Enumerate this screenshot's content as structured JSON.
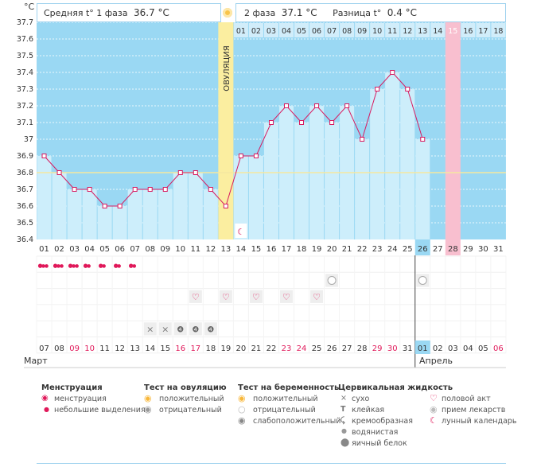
{
  "header": {
    "unit": "°C",
    "phase1_label": "Средняя t° 1 фаза",
    "phase1_value": "36.7 °C",
    "phase2_label": "2 фаза",
    "phase2_value": "37.1 °C",
    "diff_label": "Разница t°",
    "diff_value": "0.4 °C"
  },
  "ovulation_label": "ОВУЛЯЦИЯ",
  "months": {
    "first": "Март",
    "second": "Апрель"
  },
  "chart_data": {
    "type": "line",
    "ylim": [
      36.4,
      37.7
    ],
    "y_ticks": [
      "36.4",
      "36.5",
      "36.6",
      "36.7",
      "36.8",
      "36.9",
      "37",
      "37.1",
      "37.2",
      "37.3",
      "37.4",
      "37.5",
      "37.6",
      "37.7"
    ],
    "coverline": 36.8,
    "cycle_days": [
      "01",
      "02",
      "03",
      "04",
      "05",
      "06",
      "07",
      "08",
      "09",
      "10",
      "11",
      "12",
      "13",
      "14",
      "15",
      "16",
      "17",
      "18",
      "19",
      "20",
      "21",
      "22",
      "23",
      "24",
      "25",
      "26",
      "27",
      "28",
      "29",
      "30",
      "31"
    ],
    "days_after_ovulation": [
      "01",
      "02",
      "03",
      "04",
      "05",
      "06",
      "07",
      "08",
      "09",
      "10",
      "11",
      "12",
      "13",
      "14",
      "15",
      "16",
      "17",
      "18"
    ],
    "dates": [
      "07",
      "08",
      "09",
      "10",
      "11",
      "12",
      "13",
      "14",
      "15",
      "16",
      "17",
      "18",
      "19",
      "20",
      "21",
      "22",
      "23",
      "24",
      "25",
      "26",
      "27",
      "28",
      "29",
      "30",
      "31",
      "01",
      "02",
      "03",
      "04",
      "05",
      "06"
    ],
    "date_colors": [
      "n",
      "n",
      "r",
      "r",
      "n",
      "n",
      "n",
      "n",
      "n",
      "r",
      "r",
      "n",
      "n",
      "n",
      "n",
      "n",
      "r",
      "r",
      "n",
      "n",
      "n",
      "n",
      "r",
      "r",
      "n",
      "n",
      "n",
      "n",
      "n",
      "n",
      "r"
    ],
    "temperatures": [
      36.9,
      36.8,
      36.7,
      36.7,
      36.6,
      36.6,
      36.7,
      36.7,
      36.7,
      36.8,
      36.8,
      36.7,
      36.6,
      36.9,
      36.9,
      37.1,
      37.2,
      37.1,
      37.2,
      37.1,
      37.2,
      37.0,
      37.3,
      37.4,
      37.3,
      37.0
    ],
    "ovulation_day": 13,
    "current_day": 26,
    "expected_period_day": 28,
    "moon_day": 14,
    "menstruation": [
      3,
      3,
      3,
      2,
      2,
      2,
      2
    ],
    "pregnancy_test_negative_days": [
      20,
      26
    ],
    "intercourse_days": [
      11,
      13,
      15,
      17,
      19
    ],
    "cervical_fluid": {
      "dry": [
        8,
        9
      ],
      "creamy": [
        10,
        11,
        12
      ]
    }
  },
  "legend": {
    "groups": [
      {
        "title": "Менструация",
        "items": [
          {
            "icon": "drops-icon",
            "label": "менструация"
          },
          {
            "icon": "drop-icon",
            "label": "небольшие выделения"
          }
        ]
      },
      {
        "title": "Тест на овуляцию",
        "items": [
          {
            "icon": "positive-test-icon",
            "label": "положительный"
          },
          {
            "icon": "negative-test-icon",
            "label": "отрицательный"
          }
        ]
      },
      {
        "title": "Тест на беременность",
        "items": [
          {
            "icon": "positive-test-icon",
            "label": "положительный"
          },
          {
            "icon": "negative-test-icon",
            "label": "отрицательный"
          },
          {
            "icon": "weak-positive-test-icon",
            "label": "слабоположительный"
          }
        ]
      },
      {
        "title": "Цервикальная жидкость",
        "items": [
          {
            "icon": "dry-icon",
            "label": "сухо"
          },
          {
            "icon": "sticky-icon",
            "label": "клейкая"
          },
          {
            "icon": "creamy-icon",
            "label": "кремообразная"
          },
          {
            "icon": "watery-icon",
            "label": "водянистая"
          },
          {
            "icon": "egg-white-icon",
            "label": "яичный белок"
          }
        ]
      },
      {
        "title": "",
        "items": [
          {
            "icon": "heart-icon",
            "label": "половой акт"
          },
          {
            "icon": "medicine-icon",
            "label": "прием лекарств"
          },
          {
            "icon": "moon-icon",
            "label": "лунный календарь"
          }
        ]
      }
    ]
  },
  "colors": {
    "plot_bg": "#9ad8f3",
    "bar_fill": "#cdeefb",
    "line": "#d81b60",
    "ovulation_band": "#fbeea0",
    "expected_period": "#f8bfcf",
    "coverline": "#f5e7a0",
    "red_date": "#e0195a"
  }
}
